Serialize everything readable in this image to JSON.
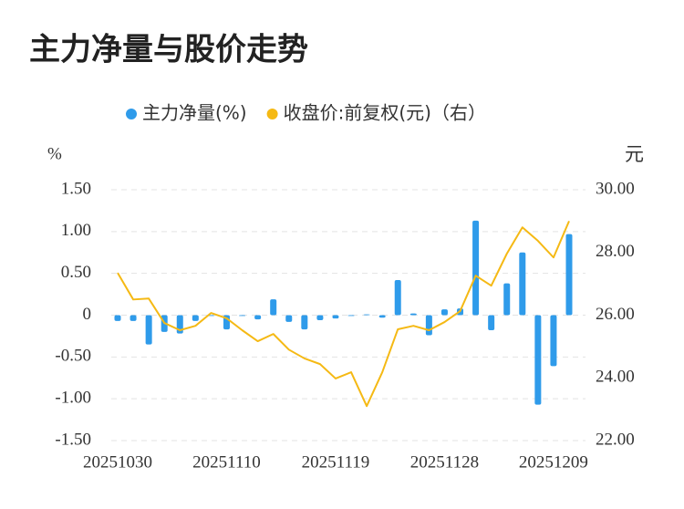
{
  "chart_data": {
    "type": "bar-line",
    "title": "主力净量与股价走势",
    "y_label": "%",
    "y2_label": "元",
    "categories": [
      "20251030",
      null,
      null,
      null,
      null,
      null,
      null,
      "20251110",
      null,
      null,
      null,
      null,
      null,
      null,
      "20251119",
      null,
      null,
      null,
      null,
      null,
      null,
      "20251128",
      null,
      null,
      null,
      null,
      null,
      null,
      "20251209",
      null
    ],
    "series": [
      {
        "name": "主力净量(%)",
        "color": "#2f9bea",
        "type": "bar",
        "values": [
          -0.07,
          -0.07,
          -0.35,
          -0.2,
          -0.22,
          -0.07,
          -0.01,
          -0.17,
          -0.01,
          -0.05,
          0.19,
          -0.08,
          -0.17,
          -0.06,
          -0.04,
          -0.01,
          0.01,
          -0.03,
          0.42,
          0.02,
          -0.24,
          0.07,
          0.08,
          1.13,
          -0.18,
          0.38,
          0.75,
          -1.07,
          -0.61,
          0.97
        ]
      },
      {
        "name": "收盘价:前复权(元)（右）",
        "color": "#f5b914",
        "type": "line",
        "axis": "y2",
        "values": [
          27.35,
          26.5,
          26.53,
          25.75,
          25.52,
          25.66,
          26.07,
          25.9,
          25.52,
          25.17,
          25.4,
          24.9,
          24.62,
          24.44,
          23.98,
          24.18,
          23.1,
          24.18,
          25.55,
          25.66,
          25.52,
          25.78,
          26.13,
          27.26,
          26.94,
          27.96,
          28.8,
          28.37,
          27.84,
          29.0
        ]
      }
    ],
    "ylim": [
      -1.5,
      1.5
    ],
    "yticks": [
      {
        "value": -1.5,
        "label": "-1.50"
      },
      {
        "value": -1,
        "label": "-1.00"
      },
      {
        "value": -0.5,
        "label": "-0.50"
      },
      0,
      {
        "value": 0.5,
        "label": "0.50"
      },
      {
        "value": 1,
        "label": "1.00"
      },
      {
        "value": 1.5,
        "label": "1.50"
      }
    ],
    "y2lim": [
      22,
      30
    ],
    "y2ticks": [
      {
        "value": 22,
        "label": "22.00"
      },
      {
        "value": 24,
        "label": "24.00"
      },
      {
        "value": 26,
        "label": "26.00"
      },
      {
        "value": 28,
        "label": "28.00"
      },
      {
        "value": 30,
        "label": "30.00"
      }
    ],
    "grid": true
  }
}
